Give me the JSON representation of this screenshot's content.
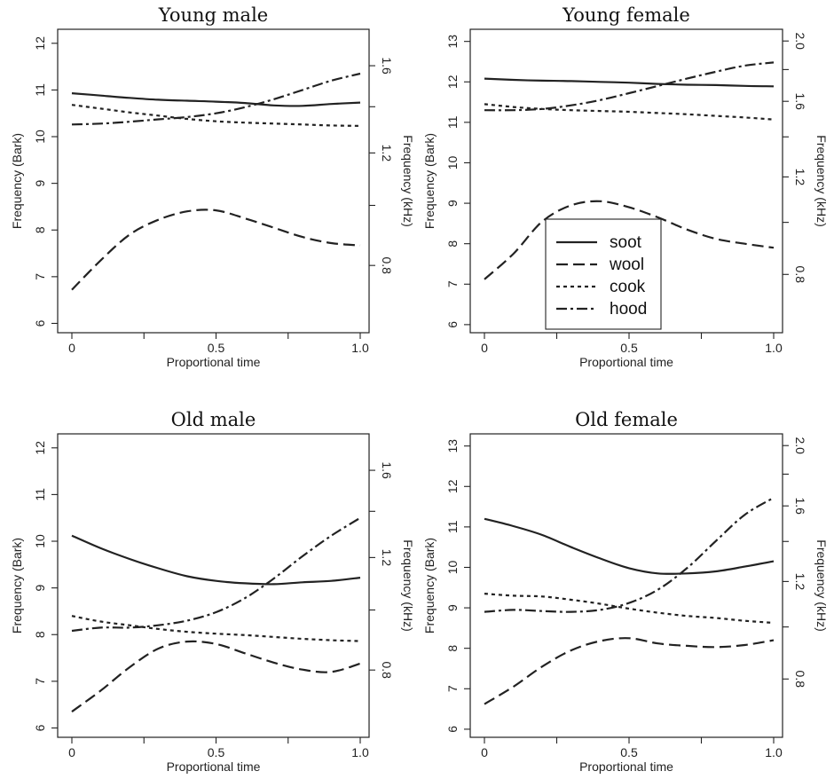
{
  "chart_data": [
    {
      "type": "line",
      "title": "Young male",
      "xlabel": "Proportional time",
      "ylabel": "Frequency (Bark)",
      "ylabel_right": "Frequency (kHz)",
      "xlim": [
        0,
        1
      ],
      "ylim": [
        6,
        12
      ],
      "x_ticks": [
        "0",
        "0.5",
        "1.0"
      ],
      "y_ticks": [
        "6",
        "7",
        "8",
        "9",
        "10",
        "11",
        "12"
      ],
      "right_ticks": [
        "0.8",
        "1.2",
        "1.6"
      ],
      "x": [
        0,
        0.1,
        0.2,
        0.3,
        0.4,
        0.5,
        0.6,
        0.7,
        0.8,
        0.9,
        1.0
      ],
      "series": [
        {
          "name": "soot",
          "values": [
            10.93,
            10.88,
            10.83,
            10.79,
            10.77,
            10.75,
            10.72,
            10.67,
            10.66,
            10.7,
            10.73
          ]
        },
        {
          "name": "wool",
          "values": [
            6.72,
            7.35,
            7.9,
            8.22,
            8.4,
            8.42,
            8.25,
            8.05,
            7.85,
            7.72,
            7.67
          ]
        },
        {
          "name": "cook",
          "values": [
            10.68,
            10.6,
            10.52,
            10.45,
            10.38,
            10.33,
            10.3,
            10.28,
            10.26,
            10.24,
            10.23
          ]
        },
        {
          "name": "hood",
          "values": [
            10.26,
            10.28,
            10.32,
            10.37,
            10.42,
            10.5,
            10.63,
            10.8,
            11.0,
            11.2,
            11.35
          ]
        }
      ]
    },
    {
      "type": "line",
      "title": "Young female",
      "xlabel": "Proportional time",
      "ylabel": "Frequency (Bark)",
      "ylabel_right": "Frequency (kHz)",
      "xlim": [
        0,
        1
      ],
      "ylim": [
        6,
        13
      ],
      "x_ticks": [
        "0",
        "0.5",
        "1.0"
      ],
      "y_ticks": [
        "6",
        "7",
        "8",
        "9",
        "10",
        "11",
        "12",
        "13"
      ],
      "right_ticks": [
        "0.8",
        "1.2",
        "1.6",
        "2.0"
      ],
      "x": [
        0,
        0.1,
        0.2,
        0.3,
        0.4,
        0.5,
        0.6,
        0.7,
        0.8,
        0.9,
        1.0
      ],
      "series": [
        {
          "name": "soot",
          "values": [
            12.08,
            12.05,
            12.03,
            12.02,
            12.0,
            11.98,
            11.95,
            11.93,
            11.92,
            11.9,
            11.89
          ]
        },
        {
          "name": "wool",
          "values": [
            7.12,
            7.75,
            8.55,
            8.95,
            9.05,
            8.9,
            8.65,
            8.35,
            8.12,
            8.0,
            7.9
          ]
        },
        {
          "name": "cook",
          "values": [
            11.45,
            11.38,
            11.33,
            11.3,
            11.28,
            11.26,
            11.23,
            11.2,
            11.16,
            11.12,
            11.07
          ]
        },
        {
          "name": "hood",
          "values": [
            11.3,
            11.3,
            11.33,
            11.42,
            11.55,
            11.72,
            11.9,
            12.08,
            12.25,
            12.4,
            12.48
          ]
        }
      ]
    },
    {
      "type": "line",
      "title": "Old male",
      "xlabel": "Proportional time",
      "ylabel": "Frequency (Bark)",
      "ylabel_right": "Frequency (kHz)",
      "xlim": [
        0,
        1
      ],
      "ylim": [
        6,
        12
      ],
      "x_ticks": [
        "0",
        "0.5",
        "1.0"
      ],
      "y_ticks": [
        "6",
        "7",
        "8",
        "9",
        "10",
        "11",
        "12"
      ],
      "right_ticks": [
        "0.8",
        "1.2",
        "1.6"
      ],
      "x": [
        0,
        0.1,
        0.2,
        0.3,
        0.4,
        0.5,
        0.6,
        0.7,
        0.8,
        0.9,
        1.0
      ],
      "series": [
        {
          "name": "soot",
          "values": [
            10.12,
            9.85,
            9.62,
            9.42,
            9.25,
            9.15,
            9.1,
            9.08,
            9.12,
            9.15,
            9.22
          ]
        },
        {
          "name": "wool",
          "values": [
            6.35,
            6.8,
            7.3,
            7.7,
            7.85,
            7.8,
            7.6,
            7.4,
            7.25,
            7.2,
            7.38
          ]
        },
        {
          "name": "cook",
          "values": [
            8.4,
            8.28,
            8.2,
            8.12,
            8.06,
            8.02,
            7.99,
            7.95,
            7.91,
            7.88,
            7.86
          ]
        },
        {
          "name": "hood",
          "values": [
            8.08,
            8.15,
            8.15,
            8.2,
            8.3,
            8.48,
            8.78,
            9.2,
            9.68,
            10.12,
            10.5
          ]
        }
      ]
    },
    {
      "type": "line",
      "title": "Old female",
      "xlabel": "Proportional time",
      "ylabel": "Frequency (Bark)",
      "ylabel_right": "Frequency (kHz)",
      "xlim": [
        0,
        1
      ],
      "ylim": [
        6,
        13
      ],
      "x_ticks": [
        "0",
        "0.5",
        "1.0"
      ],
      "y_ticks": [
        "6",
        "7",
        "8",
        "9",
        "10",
        "11",
        "12",
        "13"
      ],
      "right_ticks": [
        "0.8",
        "1.2",
        "1.6",
        "2.0"
      ],
      "x": [
        0,
        0.1,
        0.2,
        0.3,
        0.4,
        0.5,
        0.6,
        0.7,
        0.8,
        0.9,
        1.0
      ],
      "series": [
        {
          "name": "soot",
          "values": [
            11.2,
            11.02,
            10.8,
            10.5,
            10.22,
            9.98,
            9.85,
            9.85,
            9.9,
            10.02,
            10.15
          ]
        },
        {
          "name": "wool",
          "values": [
            6.62,
            7.05,
            7.55,
            7.95,
            8.18,
            8.25,
            8.12,
            8.06,
            8.03,
            8.08,
            8.2
          ]
        },
        {
          "name": "cook",
          "values": [
            9.35,
            9.3,
            9.28,
            9.2,
            9.1,
            8.98,
            8.88,
            8.8,
            8.75,
            8.68,
            8.63
          ]
        },
        {
          "name": "hood",
          "values": [
            8.9,
            8.95,
            8.92,
            8.9,
            8.95,
            9.12,
            9.45,
            9.98,
            10.65,
            11.3,
            11.72
          ]
        }
      ]
    }
  ],
  "legend": {
    "placement": "inside Young female panel, lower-center",
    "entries": [
      "soot",
      "wool",
      "cook",
      "hood"
    ]
  }
}
